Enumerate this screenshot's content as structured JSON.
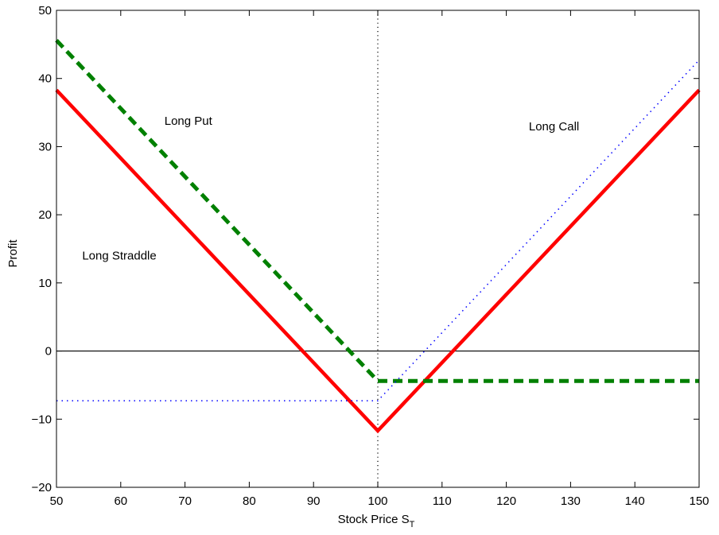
{
  "chart_data": {
    "type": "line",
    "xlabel": "Stock Price S",
    "xlabel_subscript": "T",
    "ylabel": "Profit",
    "xlim": [
      50,
      150
    ],
    "ylim": [
      -20,
      50
    ],
    "xticks": [
      50,
      60,
      70,
      80,
      90,
      100,
      110,
      120,
      130,
      140,
      150
    ],
    "yticks": [
      -20,
      -10,
      0,
      10,
      20,
      30,
      40,
      50
    ],
    "grid": false,
    "reference_lines": [
      {
        "orientation": "horizontal",
        "value": 0,
        "style": "solid",
        "color": "#000000"
      },
      {
        "orientation": "vertical",
        "value": 100,
        "style": "dotted",
        "color": "#000000"
      }
    ],
    "series": [
      {
        "name": "Long Straddle",
        "style": "solid",
        "color": "#ff0000",
        "x": [
          50,
          100,
          150
        ],
        "y": [
          38.3,
          -11.7,
          38.3
        ]
      },
      {
        "name": "Long Put",
        "style": "dashed",
        "color": "#008000",
        "x": [
          50,
          100,
          150
        ],
        "y": [
          45.6,
          -4.4,
          -4.4
        ]
      },
      {
        "name": "Long Call",
        "style": "dotted",
        "color": "#0000ff",
        "x": [
          50,
          100,
          150
        ],
        "y": [
          -7.3,
          -7.3,
          42.7
        ]
      }
    ],
    "annotations": [
      {
        "text": "Long Put",
        "x": 66.8,
        "y": 33.2
      },
      {
        "text": "Long Call",
        "x": 123.5,
        "y": 32.4
      },
      {
        "text": "Long Straddle",
        "x": 54,
        "y": 13.4
      }
    ]
  }
}
